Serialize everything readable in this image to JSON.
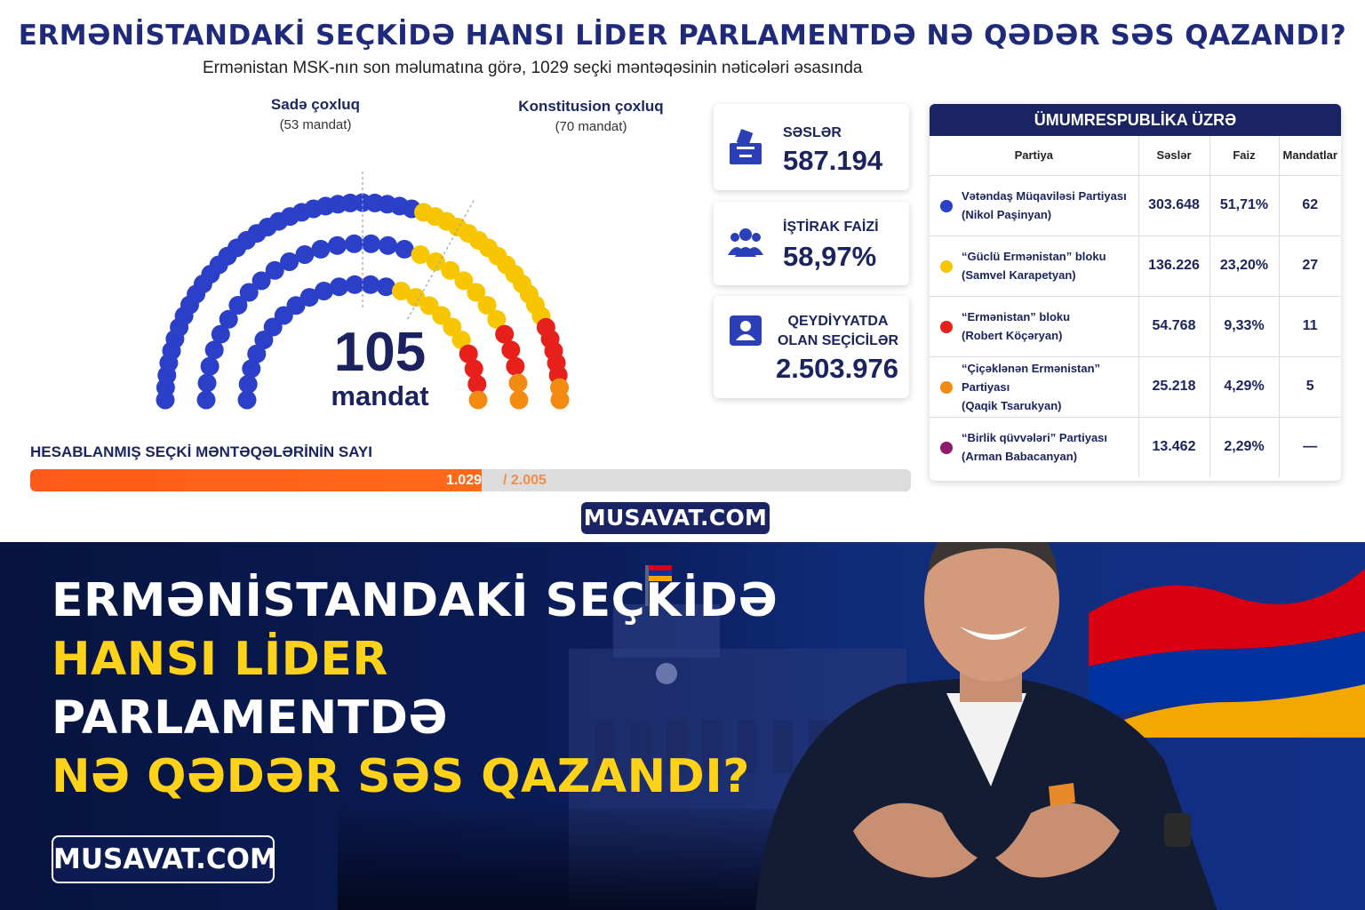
{
  "header": {
    "title": "ERMƏNİSTANDAKİ SEÇKİDƏ HANSI LİDER PARLAMENTDƏ NƏ QƏDƏR SƏS QAZANDI?",
    "subtitle": "Ermənistan MSK-nın son məlumatına görə, 1029 seçki məntəqəsinin nəticələri əsasında"
  },
  "majorities": {
    "simple": {
      "label": "Sadə çoxluq",
      "sub": "(53 mandat)"
    },
    "constitutional": {
      "label": "Konstitusion çoxluq",
      "sub": "(70 mandat)"
    }
  },
  "seats_total": {
    "number": "105",
    "unit": "mandat"
  },
  "progress": {
    "title": "HESABLANMIŞ SEÇKİ MƏNTƏQƏLƏRİNİN SAYI",
    "done": "1.029",
    "total_text": "/ 2.005",
    "fraction": 0.513
  },
  "stats": {
    "votes": {
      "label": "SƏSLƏR",
      "value": "587.194",
      "icon": "ballot-box-icon"
    },
    "turnout": {
      "label": "İŞTİRAK FAİZİ",
      "value": "58,97%",
      "icon": "people-icon"
    },
    "registered": {
      "label_line1": "QEYDİYYATDA",
      "label_line2": "OLAN SEÇİCİLƏR",
      "value": "2.503.976",
      "icon": "voter-card-icon"
    }
  },
  "table": {
    "title": "ÜMUMRESPUBLİKA ÜZRƏ",
    "columns": [
      "Partiya",
      "Səslər",
      "Faiz",
      "Mandatlar"
    ],
    "rows": [
      {
        "party": "Vətəndaş Müqaviləsi Partiyası",
        "leader": "(Nikol Paşinyan)",
        "votes": "303.648",
        "percent": "51,71%",
        "seats": "62",
        "color": "#2b3fc9"
      },
      {
        "party": "“Güclü Ermənistan” bloku",
        "leader": "(Samvel Karapetyan)",
        "votes": "136.226",
        "percent": "23,20%",
        "seats": "27",
        "color": "#f7c600"
      },
      {
        "party": "“Ermənistan” bloku",
        "leader": "(Robert Köçəryan)",
        "votes": "54.768",
        "percent": "9,33%",
        "seats": "11",
        "color": "#e8201c"
      },
      {
        "party": "“Çiçəklənən Ermənistan” Partiyası",
        "leader": "(Qaqik Tsarukyan)",
        "votes": "25.218",
        "percent": "4,29%",
        "seats": "5",
        "color": "#f38a12"
      },
      {
        "party": "“Birlik qüvvələri” Partiyası",
        "leader": "(Arman Babacanyan)",
        "votes": "13.462",
        "percent": "2,29%",
        "seats": "—",
        "color": "#8e1a6f"
      }
    ]
  },
  "chart_data": {
    "type": "parliament",
    "total": 105,
    "series": [
      {
        "name": "Vətəndaş Müqaviləsi Partiyası",
        "seats": 62,
        "color": "#2b3fc9"
      },
      {
        "name": "“Güclü Ermənistan” bloku",
        "seats": 27,
        "color": "#f7c600"
      },
      {
        "name": "“Ermənistan” bloku",
        "seats": 11,
        "color": "#e8201c"
      },
      {
        "name": "“Çiçəklənən Ermənistan” Partiyası",
        "seats": 5,
        "color": "#f38a12"
      }
    ],
    "thresholds": [
      53,
      70
    ]
  },
  "brand": {
    "small": "MUSAVAT.COM",
    "big": "MUSAVAT.COM"
  },
  "banner": {
    "line1": "ERMƏNİSTANDAKİ SEÇKİDƏ",
    "line2": "HANSI LİDER",
    "line3": "PARLAMENTDƏ",
    "line4": "NƏ QƏDƏR SƏS QAZANDI?"
  },
  "colors": {
    "navy": "#1a2463",
    "accent_yellow": "#ffd21a",
    "progress_orange": "#ff5a1a",
    "flag": [
      "#d90012",
      "#0033a0",
      "#f2a800"
    ]
  }
}
